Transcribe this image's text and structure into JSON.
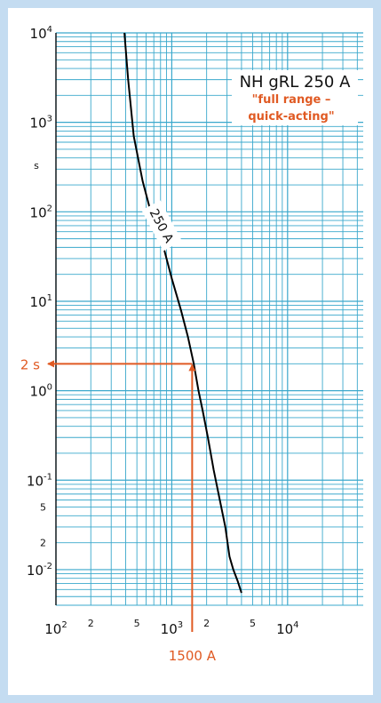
{
  "chart_data": {
    "type": "line",
    "title": "NH gRL 250 A",
    "subtitle_lines": [
      "\"full range –",
      "quick-acting\""
    ],
    "xlabel": "",
    "ylabel": "s",
    "x_scale": "log",
    "y_scale": "log",
    "xlim": [
      100,
      45000
    ],
    "ylim": [
      0.004,
      10000
    ],
    "grid": true,
    "x_major_ticks": [
      {
        "value": 100,
        "base": "10",
        "exp": "2"
      },
      {
        "value": 1000,
        "base": "10",
        "exp": "3"
      },
      {
        "value": 10000,
        "base": "10",
        "exp": "4"
      }
    ],
    "x_minor_labels": [
      {
        "value": 200,
        "label": "2"
      },
      {
        "value": 500,
        "label": "5"
      },
      {
        "value": 2000,
        "label": "2"
      },
      {
        "value": 5000,
        "label": "5"
      }
    ],
    "y_major_ticks": [
      {
        "value": 10000,
        "base": "10",
        "exp": "4"
      },
      {
        "value": 1000,
        "base": "10",
        "exp": "3"
      },
      {
        "value": 100,
        "base": "10",
        "exp": "2"
      },
      {
        "value": 10,
        "base": "10",
        "exp": "1"
      },
      {
        "value": 1,
        "base": "10",
        "exp": "0"
      },
      {
        "value": 0.1,
        "base": "10",
        "exp": "-1"
      },
      {
        "value": 0.01,
        "base": "10",
        "exp": "-2"
      }
    ],
    "y_minor_labels": [
      {
        "value": 0.05,
        "label": "5"
      },
      {
        "value": 0.02,
        "label": "2"
      }
    ],
    "series": [
      {
        "name": "250 A",
        "x": [
          390,
          420,
          470,
          560,
          680,
          850,
          1000,
          1200,
          1380,
          1550,
          1700,
          1850,
          2050,
          2300,
          2600,
          2900,
          3150,
          3400,
          3700,
          4000
        ],
        "y": [
          10000,
          3000,
          700,
          220,
          85,
          40,
          18,
          8,
          4,
          2,
          1,
          0.6,
          0.3,
          0.13,
          0.06,
          0.03,
          0.014,
          0.01,
          0.0075,
          0.0055
        ]
      }
    ],
    "annotations": {
      "time_label": "2 s",
      "current_label": "1500 A",
      "point": {
        "x": 1500,
        "y": 2
      },
      "color": "#e05a23"
    },
    "colors": {
      "grid": "#3aa8cc",
      "curve": "#000000",
      "accent": "#e05a23",
      "frame": "#c4dcf1"
    }
  }
}
